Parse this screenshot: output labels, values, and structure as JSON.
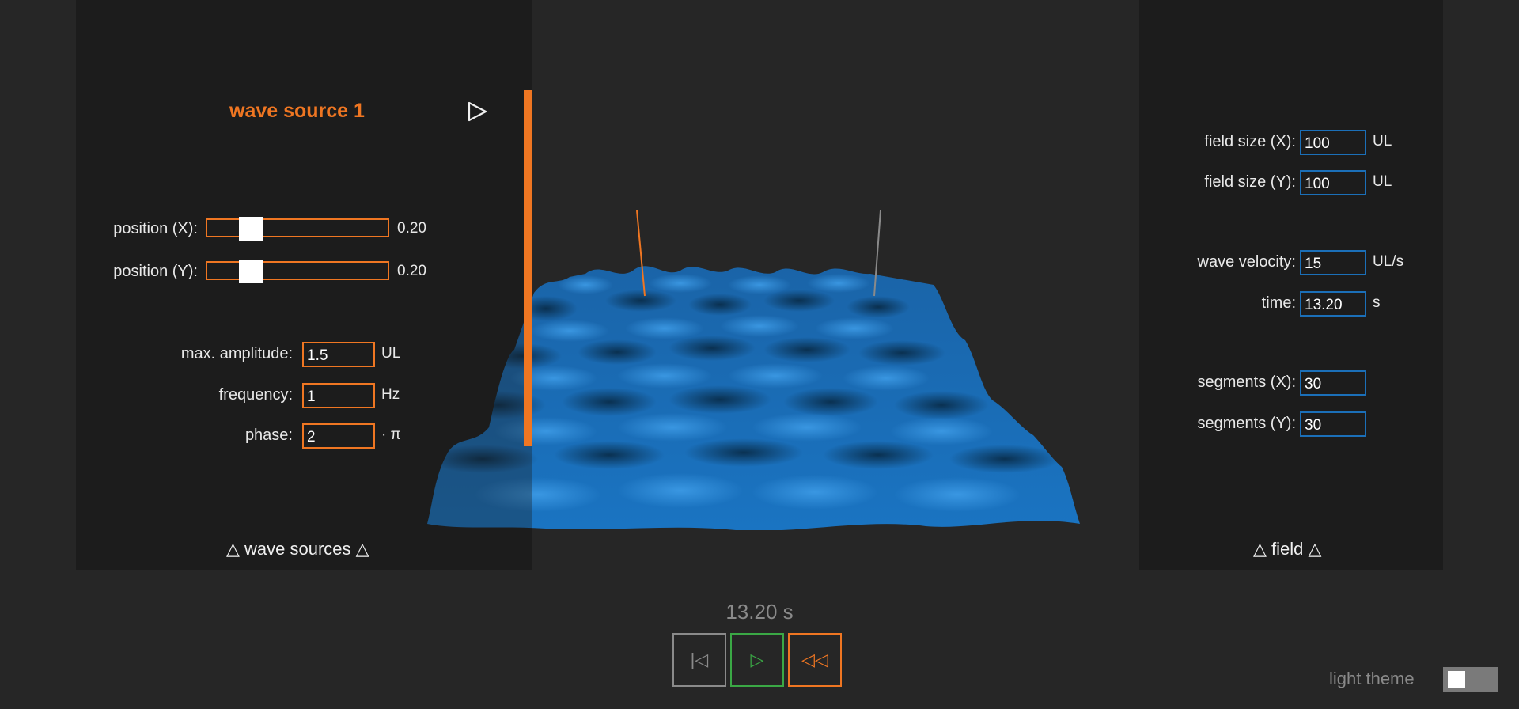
{
  "wave_sources_panel": {
    "title": "wave source 1",
    "position_x": {
      "label": "position (X):",
      "value": "0.20",
      "fraction": 0.2
    },
    "position_y": {
      "label": "position (Y):",
      "value": "0.20",
      "fraction": 0.2
    },
    "max_amplitude": {
      "label": "max. amplitude:",
      "value": "1.5",
      "unit": "UL"
    },
    "frequency": {
      "label": "frequency:",
      "value": "1",
      "unit": "Hz"
    },
    "phase": {
      "label": "phase:",
      "value": "2",
      "unit": "· π"
    },
    "footer": "△ wave sources △",
    "play_icon": "play-outline-icon",
    "accent_color": "#ef7622"
  },
  "field_panel": {
    "field_size_x": {
      "label": "field size (X):",
      "value": "100",
      "unit": "UL"
    },
    "field_size_y": {
      "label": "field size (Y):",
      "value": "100",
      "unit": "UL"
    },
    "wave_velocity": {
      "label": "wave velocity:",
      "value": "15",
      "unit": "UL/s"
    },
    "time": {
      "label": "time:",
      "value": "13.20",
      "unit": "s"
    },
    "segments_x": {
      "label": "segments (X):",
      "value": "30"
    },
    "segments_y": {
      "label": "segments (Y):",
      "value": "30"
    },
    "footer": "△ field △",
    "accent_color": "#1b6fb8"
  },
  "playback": {
    "time_display": "13.20 s",
    "reset_icon": "|◁",
    "play_icon": "▷",
    "rewind_icon": "◁◁",
    "reset_color": "#8a8a8a",
    "play_color": "#3aa845",
    "rewind_color": "#ef7622"
  },
  "theme": {
    "label": "light theme",
    "enabled": false
  },
  "scene": {
    "surface_color": "#1b6fb8",
    "source_markers": [
      "orange",
      "gray"
    ]
  }
}
